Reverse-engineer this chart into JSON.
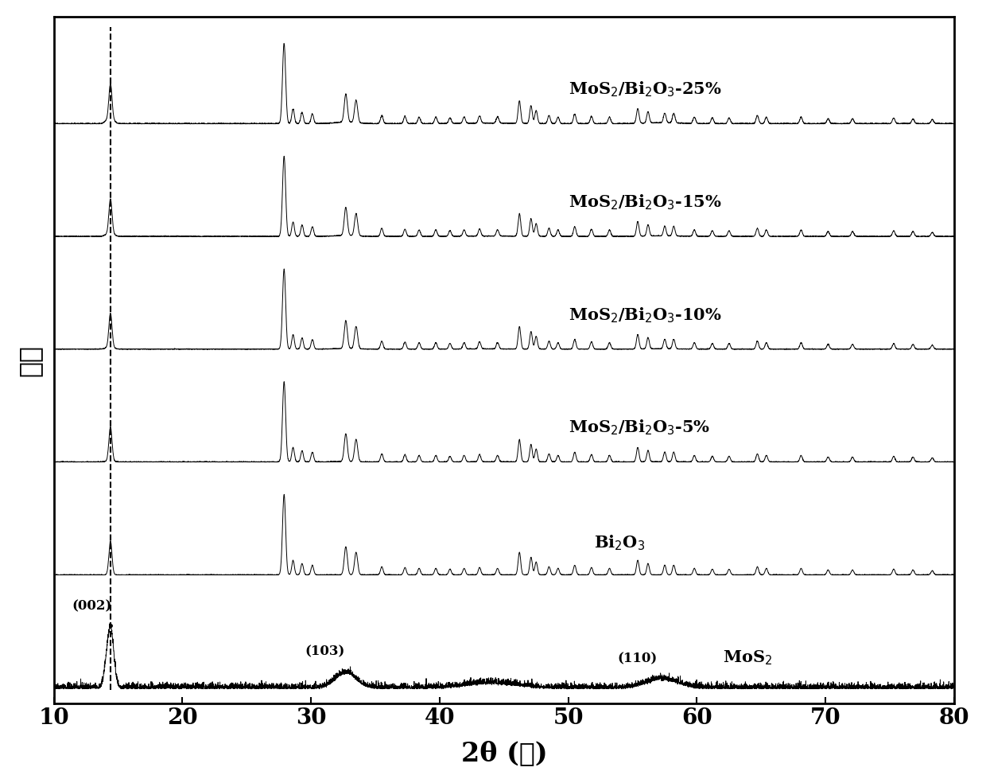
{
  "xlim": [
    10,
    80
  ],
  "xlabel": "2θ (度)",
  "ylabel": "强度",
  "xlabel_fontsize": 24,
  "ylabel_fontsize": 24,
  "tick_fontsize": 20,
  "line_color": "#000000",
  "background_color": "#ffffff",
  "dashed_line_x": 14.4,
  "labels": [
    "MoS$_2$",
    "Bi$_2$O$_3$",
    "MoS$_2$/Bi$_2$O$_3$-5%",
    "MoS$_2$/Bi$_2$O$_3$-10%",
    "MoS$_2$/Bi$_2$O$_3$-15%",
    "MoS$_2$/Bi$_2$O$_3$-25%"
  ],
  "offsets": [
    0.0,
    1.05,
    2.1,
    3.15,
    4.2,
    5.25
  ],
  "peak_annotations": [
    {
      "label": "(002)",
      "x": 14.4
    },
    {
      "label": "(103)",
      "x": 32.7
    },
    {
      "label": "(110)",
      "x": 57.3
    }
  ]
}
